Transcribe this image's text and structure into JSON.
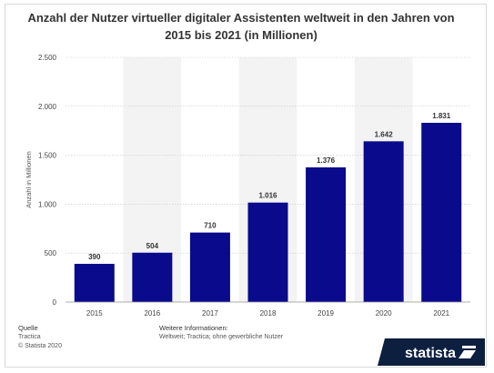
{
  "title_line1": "Anzahl der Nutzer virtueller digitaler Assistenten weltweit in den Jahren von",
  "title_line2": "2015 bis 2021 (in Millionen)",
  "chart_data": {
    "type": "bar",
    "categories": [
      "2015",
      "2016",
      "2017",
      "2018",
      "2019",
      "2020",
      "2021"
    ],
    "values": [
      390,
      504,
      710,
      1016,
      1376,
      1642,
      1831
    ],
    "value_labels": [
      "390",
      "504",
      "710",
      "1.016",
      "1.376",
      "1.642",
      "1.831"
    ],
    "ylabel": "Anzahl in Millionen",
    "xlabel": "",
    "ylim": [
      0,
      2500
    ],
    "yticks": [
      0,
      500,
      1000,
      1500,
      2000,
      2500
    ],
    "ytick_labels": [
      "0",
      "500",
      "1.000",
      "1.500",
      "2.000",
      "2.500"
    ],
    "grid": true,
    "bar_color": "#0a0a8c",
    "band_color": "#f3f3f3"
  },
  "footer": {
    "source_heading": "Quelle",
    "source_lines": [
      "Tractica",
      "© Statista 2020"
    ],
    "info_heading": "Weitere Informationen:",
    "info_text": "Weltweit; Tractica; ohne gewerbliche Nutzer"
  },
  "brand": {
    "name": "statista",
    "color": "#0c1f3f"
  }
}
